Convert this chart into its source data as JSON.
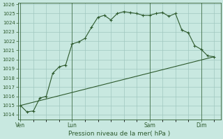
{
  "title": "Pression niveau de la mer( hPa )",
  "bg_color": "#c8e8e0",
  "grid_color": "#a0c8c0",
  "line_color": "#2d5a2d",
  "ylim": [
    1013.5,
    1026.2
  ],
  "yticks": [
    1014,
    1015,
    1016,
    1017,
    1018,
    1019,
    1020,
    1021,
    1022,
    1023,
    1024,
    1025
  ],
  "xtick_labels": [
    "Ven",
    "Lun",
    "Sam",
    "Dim"
  ],
  "xtick_positions": [
    0,
    4,
    10,
    14
  ],
  "line1_x": [
    0,
    0.5,
    1.0,
    1.5,
    2.0,
    2.5,
    3.0,
    3.5,
    4.0,
    4.5,
    5.0,
    5.5,
    6.0,
    6.5,
    7.0,
    7.5,
    8.0,
    8.5,
    9.0,
    9.5,
    10.0,
    10.5,
    11.0,
    11.5,
    12.0,
    12.5,
    13.0,
    13.5,
    14.0,
    14.5,
    15.0
  ],
  "line1_y": [
    1015.0,
    1014.3,
    1014.4,
    1015.8,
    1016.0,
    1018.5,
    1019.2,
    1019.4,
    1021.7,
    1021.9,
    1022.3,
    1023.5,
    1024.6,
    1024.8,
    1024.3,
    1025.0,
    1025.2,
    1025.1,
    1025.0,
    1024.8,
    1024.8,
    1025.0,
    1025.1,
    1024.7,
    1025.0,
    1023.2,
    1022.9,
    1021.5,
    1021.1,
    1020.4,
    1020.3
  ],
  "line2_x": [
    0,
    15
  ],
  "line2_y": [
    1015.0,
    1020.3
  ],
  "vline_positions": [
    0,
    4,
    10,
    14
  ],
  "xlim": [
    -0.2,
    15.5
  ],
  "figsize": [
    3.2,
    2.0
  ],
  "dpi": 100
}
